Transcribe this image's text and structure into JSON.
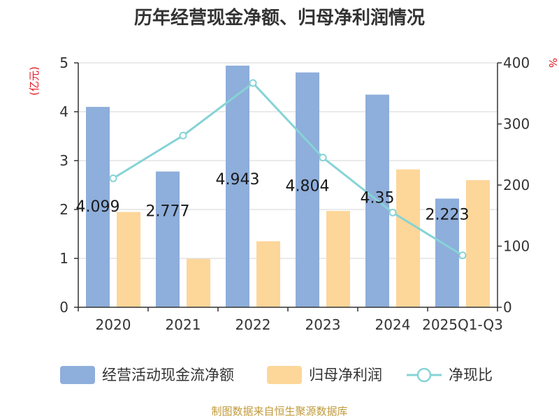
{
  "chart_data": {
    "type": "bar",
    "title": "历年经营现金净额、归母净利润情况",
    "categories": [
      "2020",
      "2021",
      "2022",
      "2023",
      "2024",
      "2025Q1-Q3"
    ],
    "series": [
      {
        "name": "经营活动现金流净额",
        "type": "bar",
        "axis": "left",
        "color": "#8eaedb",
        "values": [
          4.099,
          2.777,
          4.943,
          4.804,
          4.35,
          2.223
        ],
        "data_labels": [
          "4.099",
          "2.777",
          "4.943",
          "4.804",
          "4.35",
          "2.223"
        ]
      },
      {
        "name": "归母净利润",
        "type": "bar",
        "axis": "left",
        "color": "#fdd699",
        "values": [
          1.95,
          0.99,
          1.35,
          1.97,
          2.82,
          2.6
        ]
      },
      {
        "name": "净现比",
        "type": "line",
        "axis": "right",
        "color": "#86d3d6",
        "values": [
          211,
          281,
          367,
          245,
          155,
          85
        ]
      }
    ],
    "y_left": {
      "unit": "(亿元)",
      "min": 0,
      "max": 5,
      "ticks": [
        "0",
        "1",
        "2",
        "3",
        "4",
        "5"
      ]
    },
    "y_right": {
      "unit": "%",
      "min": 0,
      "max": 400,
      "ticks": [
        "0",
        "100",
        "200",
        "300",
        "400"
      ]
    },
    "grid": true,
    "legend_position": "bottom"
  },
  "footer": {
    "source": "制图数据来自恒生聚源数据库"
  }
}
